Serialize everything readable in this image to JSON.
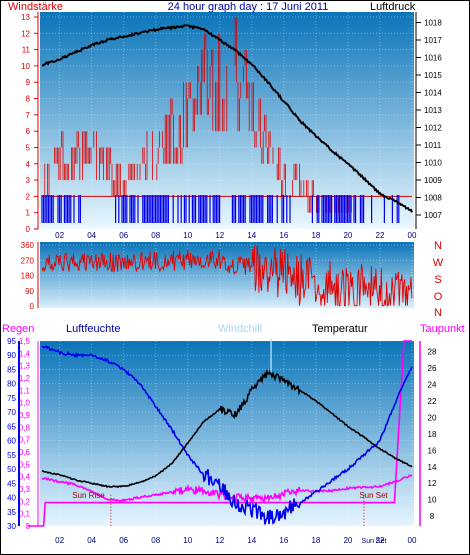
{
  "colors": {
    "red": "#e00000",
    "blue": "#0000ee",
    "black": "#000000",
    "magenta": "#ff00ff",
    "darkblue": "#0000aa",
    "windchill": "#a8d8f0",
    "panel_top": "#0a74b8",
    "panel_bottom": "#e8f6ff"
  },
  "chart_data": [
    {
      "type": "line",
      "panel": "wind-pressure",
      "title": "24 hour graph day : 17 Juni 2011",
      "left_label": "Windstärke",
      "right_label": "Luftdruck",
      "x_ticks": [
        "02",
        "04",
        "06",
        "08",
        "10",
        "12",
        "14",
        "16",
        "18",
        "20",
        "22",
        "00"
      ],
      "y_left_ticks": [
        "13",
        "12",
        "11",
        "10",
        "9",
        "8",
        "7",
        "6",
        "5",
        "4",
        "3",
        "2",
        "1",
        "0"
      ],
      "y_left_range": [
        0,
        13
      ],
      "y_right_ticks": [
        "1018",
        "1017",
        "1016",
        "1015",
        "1014",
        "1013",
        "1012",
        "1011",
        "1010",
        "1009",
        "1008",
        "1007"
      ],
      "y_right_range": [
        1006.2,
        1018.6
      ],
      "series": [
        {
          "name": "Luftdruck",
          "color": "black",
          "x": [
            0,
            1,
            2,
            3,
            4,
            5,
            6,
            7,
            8,
            9,
            10,
            11,
            12,
            13,
            14,
            15,
            16,
            17,
            18,
            19,
            20,
            21,
            22,
            23,
            24
          ],
          "y": [
            1015.3,
            1015.6,
            1015.9,
            1016.3,
            1016.7,
            1017.0,
            1017.2,
            1017.4,
            1017.6,
            1017.7,
            1017.8,
            1017.6,
            1017.0,
            1016.4,
            1015.6,
            1014.6,
            1013.5,
            1012.4,
            1011.5,
            1010.7,
            1009.9,
            1009.1,
            1008.2,
            1007.8,
            1007.2
          ]
        },
        {
          "name": "Windstärke",
          "color": "red",
          "x": [
            0,
            1,
            2,
            3,
            4,
            5,
            6,
            7,
            8,
            9,
            10,
            11,
            12,
            13,
            14,
            15,
            16,
            17,
            18,
            19,
            20,
            21,
            22,
            23,
            24
          ],
          "y": [
            2,
            3,
            4,
            4,
            4,
            4,
            3,
            4,
            4,
            5,
            6,
            8,
            7,
            8,
            6,
            5,
            3,
            3,
            2,
            2,
            2,
            1,
            1,
            2,
            1
          ]
        }
      ]
    },
    {
      "type": "line",
      "panel": "wind-direction",
      "y_left_ticks": [
        "360",
        "270",
        "180",
        "90",
        "0"
      ],
      "y_range": [
        0,
        360
      ],
      "direction_labels": [
        "N",
        "W",
        "S",
        "O",
        "N"
      ],
      "x_ticks": [
        "02",
        "04",
        "06",
        "08",
        "10",
        "12",
        "14",
        "16",
        "18",
        "20",
        "22",
        "00"
      ],
      "series": [
        {
          "name": "Windrichtung",
          "color": "red",
          "x": [
            0,
            2,
            4,
            6,
            8,
            10,
            12,
            13,
            14,
            15,
            16,
            17,
            18,
            19,
            20,
            21,
            22,
            23,
            24
          ],
          "y": [
            240,
            250,
            260,
            255,
            265,
            270,
            280,
            230,
            240,
            180,
            200,
            150,
            120,
            110,
            90,
            100,
            80,
            60,
            20
          ]
        }
      ]
    },
    {
      "type": "line",
      "panel": "rain-humidity-temperature",
      "labels": [
        "Regen",
        "Luftfeuchte",
        "Windchill",
        "Temperatur",
        "Taupunkt"
      ],
      "y_rain_ticks": [
        "1,5",
        "1,4",
        "1,3",
        "1,2",
        "1,1",
        "1,0",
        "0,9",
        "0,8",
        "0,7",
        "0,6",
        "0,5",
        "0,4",
        "0,3",
        "0,2",
        "0,1",
        "0"
      ],
      "y_rain_range": [
        0,
        1.5
      ],
      "y_hum_ticks": [
        "95",
        "90",
        "85",
        "80",
        "75",
        "70",
        "65",
        "60",
        "55",
        "50",
        "45",
        "40",
        "35",
        "30"
      ],
      "y_hum_range": [
        30,
        95
      ],
      "y_temp_ticks": [
        "28",
        "26",
        "24",
        "22",
        "20",
        "18",
        "16",
        "14",
        "12",
        "10",
        "8"
      ],
      "y_temp_range": [
        6.8,
        29.3
      ],
      "x_ticks": [
        "02",
        "04",
        "06",
        "08",
        "10",
        "12",
        "14",
        "16",
        "18",
        "20",
        "22",
        "00"
      ],
      "x_extra_labels": [
        "Sun Set"
      ],
      "annotations": [
        "Sun Rise",
        "Sun Set"
      ],
      "series": [
        {
          "name": "Luftfeuchte",
          "color": "blue",
          "x": [
            0,
            1,
            2,
            3,
            4,
            5,
            6,
            7,
            8,
            9,
            10,
            11,
            12,
            13,
            14,
            15,
            16,
            17,
            18,
            19,
            20,
            21,
            22,
            23,
            24
          ],
          "y": [
            92,
            93,
            91,
            90,
            90,
            88,
            85,
            80,
            72,
            64,
            55,
            48,
            45,
            38,
            36,
            33,
            35,
            38,
            42,
            46,
            50,
            55,
            60,
            74,
            86
          ]
        },
        {
          "name": "Temperatur",
          "color": "black",
          "x": [
            0,
            1,
            2,
            3,
            4,
            5,
            6,
            7,
            8,
            9,
            10,
            11,
            12,
            13,
            14,
            15,
            16,
            17,
            18,
            19,
            20,
            21,
            22,
            23,
            24
          ],
          "y": [
            14.2,
            13.4,
            13.0,
            12.4,
            12.0,
            11.6,
            11.6,
            12.1,
            12.9,
            14.4,
            16.9,
            19.5,
            21.0,
            20.3,
            23.3,
            25.5,
            24.4,
            23.3,
            22.0,
            20.5,
            18.9,
            17.6,
            16.2,
            15.0,
            14.0
          ]
        },
        {
          "name": "Taupunkt",
          "color": "magenta",
          "x": [
            0,
            1,
            2,
            3,
            4,
            5,
            6,
            7,
            8,
            9,
            10,
            11,
            12,
            13,
            14,
            15,
            16,
            17,
            18,
            19,
            20,
            21,
            22,
            23,
            24
          ],
          "y": [
            12.7,
            12.6,
            12.2,
            11.8,
            11.0,
            10.0,
            9.9,
            10.3,
            10.6,
            10.9,
            11.2,
            11.1,
            10.6,
            10.3,
            10.1,
            10.2,
            10.7,
            11.1,
            11.0,
            11.1,
            11.4,
            11.5,
            11.6,
            12.2,
            13.0
          ]
        },
        {
          "name": "Regen",
          "color": "magenta",
          "x": [
            0,
            1,
            1.1,
            22.9,
            23.5,
            24
          ],
          "y": [
            0,
            0,
            0.19,
            0.19,
            1.5,
            1.5
          ]
        }
      ]
    }
  ]
}
